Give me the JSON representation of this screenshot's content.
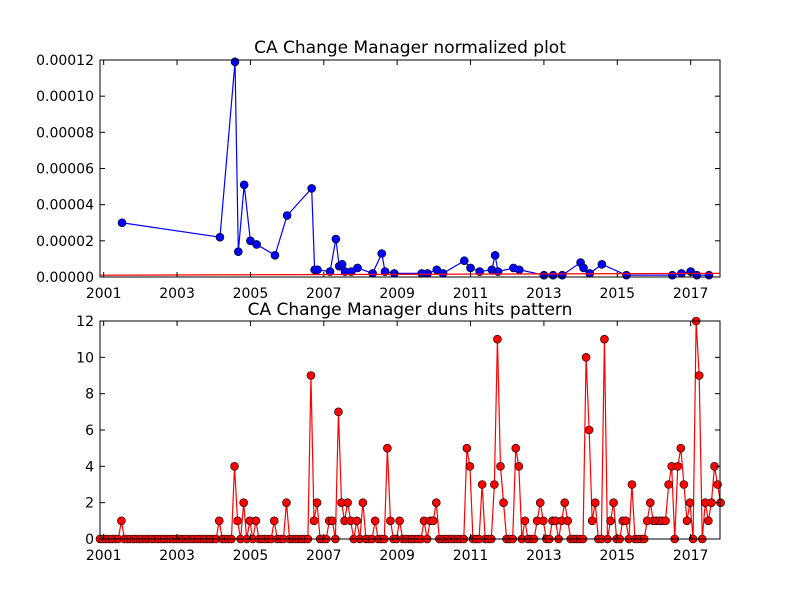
{
  "chart_data": [
    {
      "type": "line",
      "title": "CA Change Manager normalized plot",
      "xlabel": "",
      "ylabel": "",
      "xlim": [
        2000.9,
        2017.8
      ],
      "ylim": [
        0,
        0.00012
      ],
      "x_ticks": [
        "2001",
        "2003",
        "2005",
        "2007",
        "2009",
        "2011",
        "2013",
        "2015",
        "2017"
      ],
      "y_ticks": [
        "0.00000",
        "0.00002",
        "0.00004",
        "0.00006",
        "0.00008",
        "0.00010",
        "0.00012"
      ],
      "grid": false,
      "series": [
        {
          "color": "#0000ff",
          "marker": "circle",
          "x": [
            2001.5,
            2004.17,
            2004.58,
            2004.67,
            2004.83,
            2005.0,
            2005.17,
            2005.67,
            2006.0,
            2006.67,
            2006.75,
            2006.83,
            2007.17,
            2007.33,
            2007.42,
            2007.5,
            2007.58,
            2007.75,
            2007.92,
            2008.33,
            2008.58,
            2008.67,
            2008.92,
            2009.67,
            2009.83,
            2010.08,
            2010.25,
            2010.83,
            2011.0,
            2011.25,
            2011.58,
            2011.67,
            2011.75,
            2012.17,
            2012.33,
            2013.0,
            2013.25,
            2013.5,
            2014.0,
            2014.08,
            2014.25,
            2014.58,
            2015.25,
            2016.5,
            2016.75,
            2017.0,
            2017.17,
            2017.5
          ],
          "values": [
            3e-05,
            2.2e-05,
            0.000119,
            1.4e-05,
            5.1e-05,
            2e-05,
            1.8e-05,
            1.2e-05,
            3.4e-05,
            4.9e-05,
            4e-06,
            4e-06,
            3e-06,
            2.1e-05,
            6e-06,
            7e-06,
            3e-06,
            3e-06,
            5e-06,
            2e-06,
            1.3e-05,
            3e-06,
            2e-06,
            2e-06,
            2e-06,
            4e-06,
            2e-06,
            9e-06,
            5e-06,
            3e-06,
            4e-06,
            1.2e-05,
            3e-06,
            5e-06,
            4e-06,
            1e-06,
            1e-06,
            1e-06,
            8e-06,
            5e-06,
            2e-06,
            7e-06,
            1e-06,
            1e-06,
            2e-06,
            3e-06,
            1e-06,
            1e-06
          ]
        },
        {
          "color": "#ff0000",
          "marker": "none",
          "x": [
            2000.9,
            2017.8
          ],
          "values": [
            1e-06,
            2e-06
          ]
        }
      ]
    },
    {
      "type": "line",
      "title": "CA Change Manager duns hits pattern",
      "xlabel": "",
      "ylabel": "",
      "xlim": [
        2000.9,
        2017.8
      ],
      "ylim": [
        0,
        12
      ],
      "x_ticks": [
        "2001",
        "2003",
        "2005",
        "2007",
        "2009",
        "2011",
        "2013",
        "2015",
        "2017"
      ],
      "y_ticks": [
        "0",
        "2",
        "4",
        "6",
        "8",
        "10",
        "12"
      ],
      "grid": false,
      "series": [
        {
          "color": "#ff0000",
          "marker": "circle",
          "x_start": 2000.9,
          "x_step": 0.08333,
          "values": [
            0,
            0,
            0,
            0,
            0,
            0,
            0,
            1,
            0,
            0,
            0,
            0,
            0,
            0,
            0,
            0,
            0,
            0,
            0,
            0,
            0,
            0,
            0,
            0,
            0,
            0,
            0,
            0,
            0,
            0,
            0,
            0,
            0,
            0,
            0,
            0,
            0,
            0,
            0,
            1,
            0,
            0,
            0,
            0,
            4,
            1,
            0,
            2,
            0,
            1,
            0,
            1,
            0,
            0,
            0,
            0,
            0,
            1,
            0,
            0,
            0,
            2,
            0,
            0,
            0,
            0,
            0,
            0,
            0,
            9,
            1,
            2,
            0,
            0,
            0,
            1,
            1,
            0,
            7,
            2,
            1,
            2,
            1,
            0,
            1,
            0,
            2,
            0,
            0,
            0,
            1,
            0,
            0,
            0,
            5,
            1,
            0,
            0,
            1,
            0,
            0,
            0,
            0,
            0,
            0,
            0,
            1,
            0,
            1,
            1,
            2,
            0,
            0,
            0,
            0,
            0,
            0,
            0,
            0,
            0,
            5,
            4,
            0,
            0,
            0,
            3,
            0,
            0,
            0,
            3,
            11,
            4,
            2,
            0,
            0,
            0,
            5,
            4,
            0,
            1,
            0,
            0,
            0,
            1,
            2,
            1,
            0,
            0,
            1,
            1,
            0,
            1,
            2,
            1,
            0,
            0,
            0,
            0,
            0,
            10,
            6,
            1,
            2,
            0,
            0,
            11,
            0,
            1,
            2,
            0,
            0,
            1,
            1,
            0,
            3,
            0,
            0,
            0,
            0,
            1,
            2,
            1,
            1,
            1,
            1,
            1,
            3,
            4,
            0,
            4,
            5,
            3,
            1,
            2,
            0,
            12,
            9,
            0,
            2,
            1,
            2,
            4,
            3,
            2
          ]
        }
      ]
    }
  ]
}
